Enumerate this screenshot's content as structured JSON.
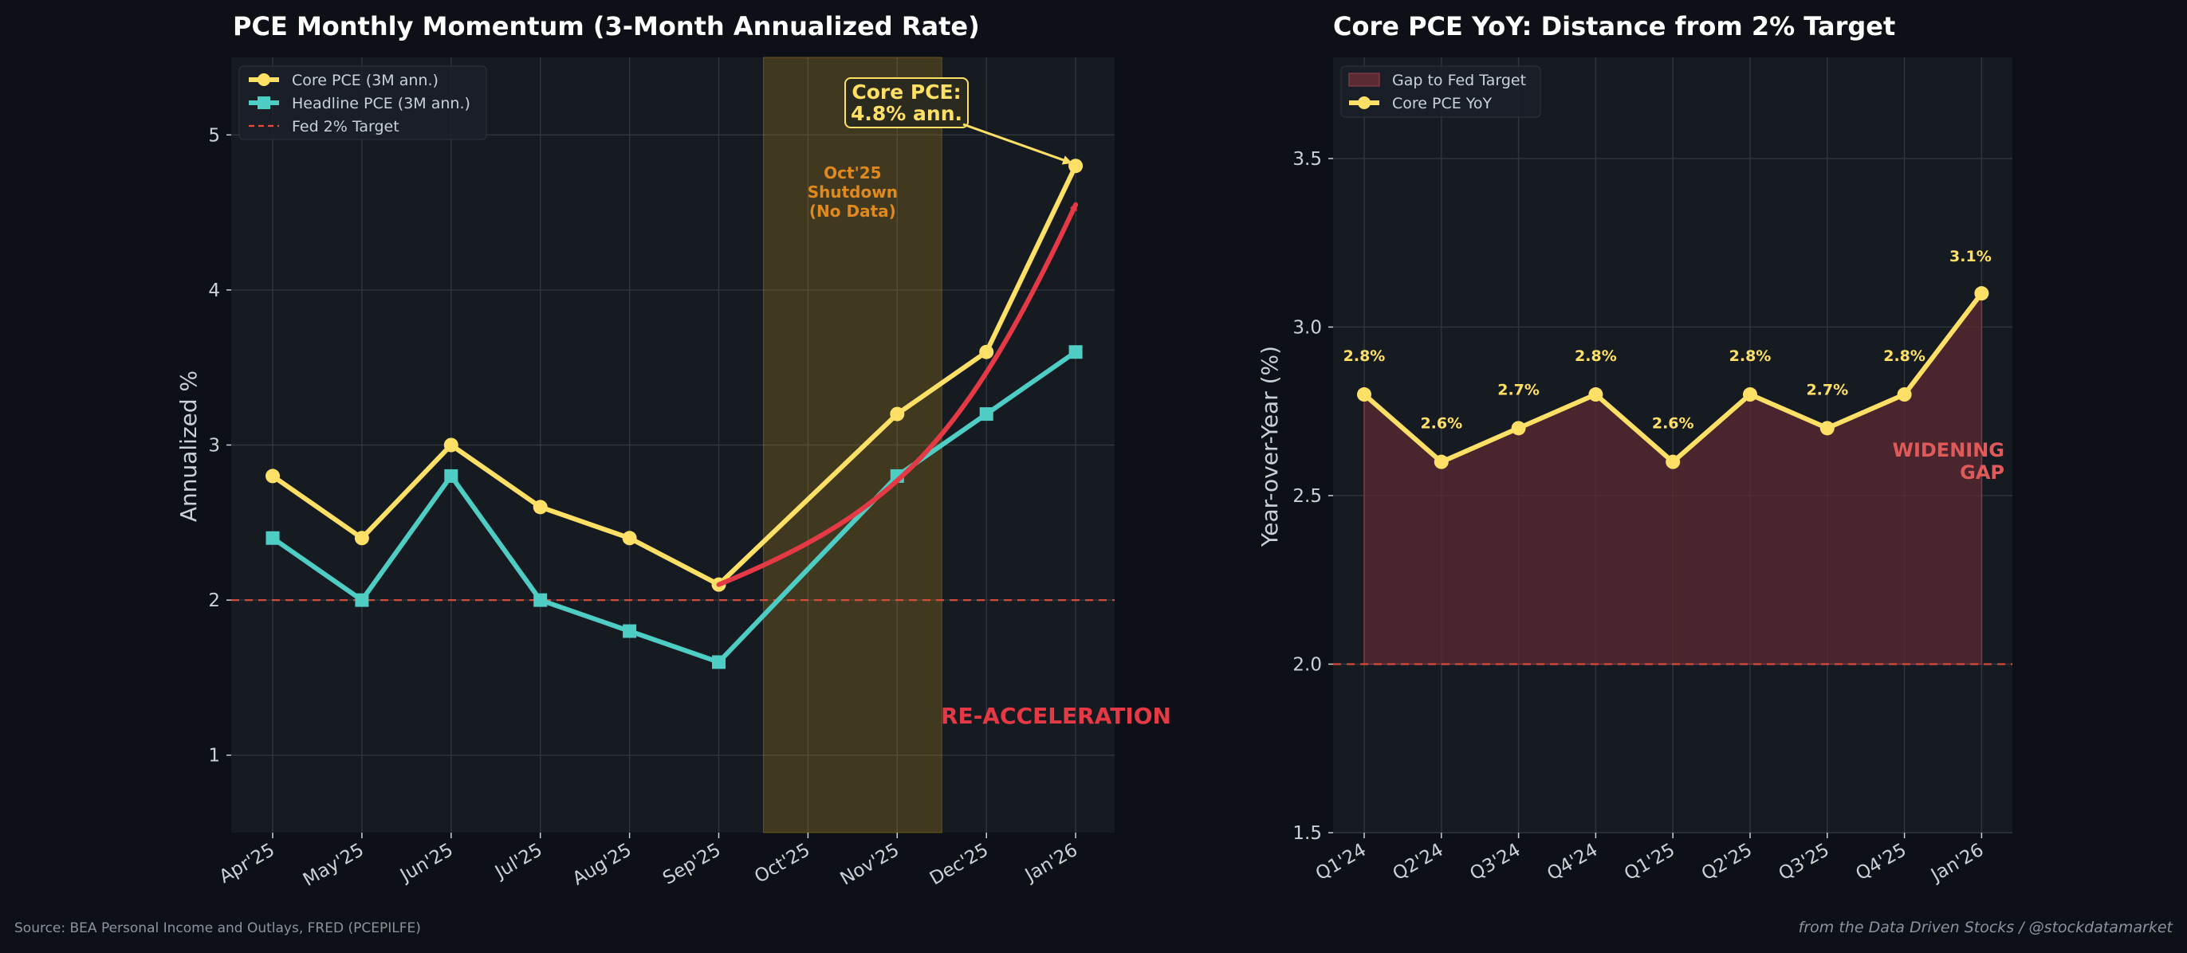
{
  "colors": {
    "background": "#0d1117",
    "panel": "#161b22",
    "grid": "#30363d",
    "text": "#ffffff",
    "tick": "#c9d1d9",
    "core": "#ffe066",
    "headline": "#4ecdc4",
    "target": "#e74c3c",
    "shutdown": "#d4a017",
    "shutdown_text": "#e08a1e",
    "arrow": "#e63946",
    "gap_fill": "#5c2a32",
    "gap_text": "#e05a5a",
    "footer": "#8b949e"
  },
  "chart_data": [
    {
      "type": "line",
      "title": "PCE Monthly Momentum (3-Month Annualized Rate)",
      "xlabel": "",
      "ylabel": "Annualized %",
      "categories": [
        "Apr'25",
        "May'25",
        "Jun'25",
        "Jul'25",
        "Aug'25",
        "Sep'25",
        "Oct'25",
        "Nov'25",
        "Dec'25",
        "Jan'26"
      ],
      "ylim": [
        0.5,
        5.5
      ],
      "yticks": [
        1,
        2,
        3,
        4,
        5
      ],
      "grid": true,
      "legend": "top-left",
      "series": [
        {
          "name": "Core PCE (3M ann.)",
          "marker": "circle",
          "values": [
            2.8,
            2.4,
            3.0,
            2.6,
            2.4,
            2.1,
            null,
            3.2,
            3.6,
            4.8
          ]
        },
        {
          "name": "Headline PCE (3M ann.)",
          "marker": "square",
          "values": [
            2.4,
            2.0,
            2.8,
            2.0,
            1.8,
            1.6,
            null,
            2.8,
            3.2,
            3.6
          ]
        }
      ],
      "reference_line": {
        "name": "Fed 2% Target",
        "value": 2.0
      },
      "shaded_region": {
        "label_lines": [
          "Oct'25",
          "Shutdown",
          "(No Data)"
        ],
        "x_from": 5.5,
        "x_to": 7.5
      },
      "callout": {
        "lines": [
          "Core PCE:",
          "4.8% ann."
        ],
        "points_to_category": 9,
        "points_to_value": 4.8
      },
      "trend_arrow": {
        "from_category": 5,
        "from_value": 2.1,
        "to_category": 9,
        "to_value": 4.55,
        "label": "RE-ACCELERATION"
      }
    },
    {
      "type": "line",
      "title": "Core PCE YoY: Distance from 2% Target",
      "xlabel": "",
      "ylabel": "Year-over-Year (%)",
      "categories": [
        "Q1'24",
        "Q2'24",
        "Q3'24",
        "Q4'24",
        "Q1'25",
        "Q2'25",
        "Q3'25",
        "Q4'25",
        "Jan'26"
      ],
      "ylim": [
        1.5,
        3.8
      ],
      "yticks": [
        1.5,
        2.0,
        2.5,
        3.0,
        3.5
      ],
      "grid": true,
      "legend": "top-left",
      "series": [
        {
          "name": "Core PCE YoY",
          "marker": "circle",
          "values": [
            2.8,
            2.6,
            2.7,
            2.8,
            2.6,
            2.8,
            2.7,
            2.8,
            3.1
          ]
        }
      ],
      "data_labels": [
        "2.8%",
        "2.6%",
        "2.7%",
        "2.8%",
        "2.6%",
        "2.8%",
        "2.7%",
        "2.8%",
        "3.1%"
      ],
      "fill_area": {
        "name": "Gap to Fed Target",
        "baseline": 2.0
      },
      "reference_value": 2.0,
      "annotation": {
        "lines": [
          "WIDENING",
          "GAP"
        ]
      }
    }
  ],
  "footer": {
    "source": "Source: BEA Personal Income and Outlays, FRED (PCEPILFE)",
    "credit": "from the Data Driven Stocks / @stockdatamarket"
  }
}
